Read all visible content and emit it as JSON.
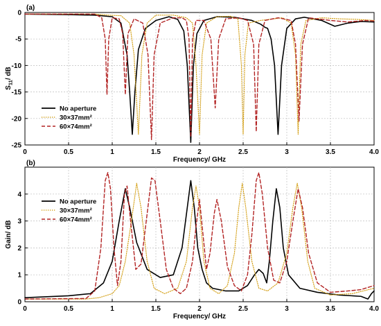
{
  "chart_data": [
    {
      "type": "line",
      "panel_label": "(a)",
      "xlabel": "Frequency/ GHz",
      "ylabel_main": "S",
      "ylabel_sub": "11",
      "ylabel_rest": "/ dB",
      "xlim": [
        0,
        4.0
      ],
      "ylim": [
        -25,
        0
      ],
      "xticks": [
        "0",
        "0.5",
        "1",
        "1.5",
        "2",
        "2.5",
        "3",
        "3.5",
        "4.0"
      ],
      "xtick_values": [
        0,
        0.5,
        1,
        1.5,
        2,
        2.5,
        3,
        3.5,
        4.0
      ],
      "yticks": [
        "0",
        "-5",
        "-10",
        "-15",
        "-20",
        "-25"
      ],
      "ytick_values": [
        0,
        -5,
        -10,
        -15,
        -20,
        -25
      ],
      "grid": true,
      "legend_position": "bottom-left",
      "series": [
        {
          "name": "No aperture",
          "color": "#000000",
          "style": "solid",
          "points": [
            [
              0,
              -0.3
            ],
            [
              0.5,
              -0.4
            ],
            [
              0.8,
              -0.5
            ],
            [
              1.0,
              -0.8
            ],
            [
              1.1,
              -2
            ],
            [
              1.17,
              -8
            ],
            [
              1.2,
              -15
            ],
            [
              1.23,
              -23
            ],
            [
              1.26,
              -15
            ],
            [
              1.3,
              -7
            ],
            [
              1.38,
              -3
            ],
            [
              1.5,
              -1.5
            ],
            [
              1.65,
              -0.8
            ],
            [
              1.75,
              -1.3
            ],
            [
              1.82,
              -3.5
            ],
            [
              1.86,
              -10
            ],
            [
              1.9,
              -24.5
            ],
            [
              1.93,
              -10
            ],
            [
              1.97,
              -4
            ],
            [
              2.05,
              -1.5
            ],
            [
              2.2,
              -0.8
            ],
            [
              2.4,
              -0.9
            ],
            [
              2.6,
              -1.5
            ],
            [
              2.7,
              -2.2
            ],
            [
              2.75,
              -2.8
            ],
            [
              2.78,
              -3
            ],
            [
              2.82,
              -5
            ],
            [
              2.86,
              -10
            ],
            [
              2.9,
              -23
            ],
            [
              2.94,
              -10
            ],
            [
              3.0,
              -3
            ],
            [
              3.1,
              -1.2
            ],
            [
              3.2,
              -0.9
            ],
            [
              3.4,
              -1.5
            ],
            [
              3.55,
              -2.6
            ],
            [
              3.7,
              -2
            ],
            [
              3.85,
              -1.7
            ],
            [
              4.0,
              -1.8
            ]
          ]
        },
        {
          "name": "30×37mm²",
          "color": "#d4a017",
          "style": "dotted",
          "points": [
            [
              0,
              -0.3
            ],
            [
              0.8,
              -0.3
            ],
            [
              0.95,
              -0.5
            ],
            [
              1.1,
              -0.6
            ],
            [
              1.2,
              -2
            ],
            [
              1.25,
              -8
            ],
            [
              1.3,
              -23
            ],
            [
              1.34,
              -8
            ],
            [
              1.4,
              -2
            ],
            [
              1.5,
              -0.5
            ],
            [
              1.7,
              -0.5
            ],
            [
              1.85,
              -1
            ],
            [
              1.92,
              -2
            ],
            [
              1.96,
              -10
            ],
            [
              2.0,
              -23
            ],
            [
              2.03,
              -8
            ],
            [
              2.08,
              -2
            ],
            [
              2.2,
              -0.8
            ],
            [
              2.35,
              -0.7
            ],
            [
              2.44,
              -1.2
            ],
            [
              2.48,
              -10
            ],
            [
              2.5,
              -23
            ],
            [
              2.52,
              -8
            ],
            [
              2.56,
              -2
            ],
            [
              2.7,
              -1.5
            ],
            [
              2.85,
              -1.2
            ],
            [
              2.95,
              -1
            ],
            [
              3.05,
              -2
            ],
            [
              3.1,
              -8
            ],
            [
              3.13,
              -23
            ],
            [
              3.16,
              -6
            ],
            [
              3.22,
              -1.5
            ],
            [
              3.4,
              -1
            ],
            [
              3.6,
              -1.2
            ],
            [
              3.8,
              -1.3
            ],
            [
              4.0,
              -1.5
            ]
          ]
        },
        {
          "name": "60×74mm²",
          "color": "#b22222",
          "style": "dashed",
          "points": [
            [
              0,
              -0.3
            ],
            [
              0.8,
              -0.3
            ],
            [
              0.88,
              -1
            ],
            [
              0.92,
              -5
            ],
            [
              0.94,
              -15.5
            ],
            [
              0.96,
              -5
            ],
            [
              1.0,
              -1
            ],
            [
              1.08,
              -1.2
            ],
            [
              1.12,
              -4
            ],
            [
              1.15,
              -15.5
            ],
            [
              1.18,
              -4
            ],
            [
              1.25,
              -1.2
            ],
            [
              1.35,
              -2
            ],
            [
              1.41,
              -8
            ],
            [
              1.45,
              -24
            ],
            [
              1.48,
              -8
            ],
            [
              1.55,
              -2
            ],
            [
              1.7,
              -1
            ],
            [
              1.8,
              -1
            ],
            [
              1.85,
              -1.5
            ],
            [
              1.88,
              -5
            ],
            [
              1.9,
              -23.5
            ],
            [
              1.92,
              -5
            ],
            [
              1.96,
              -1.5
            ],
            [
              2.05,
              -1.5
            ],
            [
              2.13,
              -5
            ],
            [
              2.18,
              -18
            ],
            [
              2.22,
              -5
            ],
            [
              2.3,
              -1.2
            ],
            [
              2.45,
              -1
            ],
            [
              2.55,
              -1.5
            ],
            [
              2.62,
              -6
            ],
            [
              2.65,
              -22.5
            ],
            [
              2.68,
              -6
            ],
            [
              2.75,
              -1.5
            ],
            [
              2.9,
              -1
            ],
            [
              3.05,
              -1.5
            ],
            [
              3.1,
              -6
            ],
            [
              3.14,
              -20.5
            ],
            [
              3.18,
              -6
            ],
            [
              3.25,
              -1
            ],
            [
              3.5,
              -1.5
            ],
            [
              3.7,
              -1.8
            ],
            [
              3.9,
              -1.5
            ],
            [
              4.0,
              -1.6
            ]
          ]
        }
      ]
    },
    {
      "type": "line",
      "panel_label": "(b)",
      "xlabel": "Frequency/ GHz",
      "ylabel": "Gain/ dB",
      "xlim": [
        0,
        4.0
      ],
      "ylim": [
        0,
        5
      ],
      "xticks": [
        "0",
        "0.5",
        "1",
        "1.5",
        "2",
        "2.5",
        "3",
        "3.5",
        "4.0"
      ],
      "xtick_values": [
        0,
        0.5,
        1,
        1.5,
        2,
        2.5,
        3,
        3.5,
        4.0
      ],
      "yticks": [
        "0",
        "1",
        "2",
        "3",
        "4"
      ],
      "ytick_values": [
        0,
        1,
        2,
        3,
        4
      ],
      "grid": true,
      "legend_position": "top-left",
      "series": [
        {
          "name": "No aperture",
          "color": "#000000",
          "style": "solid",
          "points": [
            [
              0,
              0.15
            ],
            [
              0.5,
              0.22
            ],
            [
              0.75,
              0.3
            ],
            [
              0.9,
              0.7
            ],
            [
              1.0,
              1.5
            ],
            [
              1.08,
              3
            ],
            [
              1.15,
              4.2
            ],
            [
              1.2,
              3.5
            ],
            [
              1.28,
              2.2
            ],
            [
              1.4,
              1.2
            ],
            [
              1.55,
              0.9
            ],
            [
              1.7,
              1.0
            ],
            [
              1.8,
              2
            ],
            [
              1.86,
              3.5
            ],
            [
              1.9,
              4.5
            ],
            [
              1.94,
              3.5
            ],
            [
              1.98,
              2
            ],
            [
              2.03,
              1.2
            ],
            [
              2.08,
              0.7
            ],
            [
              2.15,
              0.5
            ],
            [
              2.3,
              0.4
            ],
            [
              2.45,
              0.4
            ],
            [
              2.55,
              0.6
            ],
            [
              2.63,
              1.0
            ],
            [
              2.68,
              1.2
            ],
            [
              2.73,
              1.05
            ],
            [
              2.77,
              0.7
            ],
            [
              2.8,
              1.5
            ],
            [
              2.84,
              3
            ],
            [
              2.88,
              4.2
            ],
            [
              2.92,
              3.5
            ],
            [
              2.96,
              2
            ],
            [
              3.02,
              1.0
            ],
            [
              3.15,
              0.5
            ],
            [
              3.35,
              0.35
            ],
            [
              3.6,
              0.25
            ],
            [
              3.85,
              0.2
            ],
            [
              3.93,
              0.1
            ],
            [
              3.97,
              0.3
            ],
            [
              4.0,
              0.4
            ]
          ]
        },
        {
          "name": "30×37mm²",
          "color": "#d4a017",
          "style": "dotted",
          "points": [
            [
              0,
              0.1
            ],
            [
              0.7,
              0.1
            ],
            [
              0.85,
              0.15
            ],
            [
              1.0,
              0.3
            ],
            [
              1.08,
              0.6
            ],
            [
              1.15,
              1.5
            ],
            [
              1.22,
              3
            ],
            [
              1.28,
              4.4
            ],
            [
              1.33,
              3.5
            ],
            [
              1.4,
              1.5
            ],
            [
              1.48,
              0.5
            ],
            [
              1.6,
              0.3
            ],
            [
              1.75,
              0.5
            ],
            [
              1.85,
              1.5
            ],
            [
              1.92,
              3.5
            ],
            [
              1.96,
              4.3
            ],
            [
              2.0,
              3.5
            ],
            [
              2.05,
              1.5
            ],
            [
              2.12,
              0.5
            ],
            [
              2.22,
              0.3
            ],
            [
              2.32,
              0.6
            ],
            [
              2.4,
              1.8
            ],
            [
              2.45,
              3.5
            ],
            [
              2.49,
              4.4
            ],
            [
              2.53,
              3.5
            ],
            [
              2.6,
              1.5
            ],
            [
              2.68,
              0.5
            ],
            [
              2.78,
              0.4
            ],
            [
              2.9,
              0.7
            ],
            [
              3.0,
              1.8
            ],
            [
              3.07,
              3.5
            ],
            [
              3.12,
              4.4
            ],
            [
              3.17,
              3.5
            ],
            [
              3.24,
              1.5
            ],
            [
              3.32,
              0.5
            ],
            [
              3.5,
              0.25
            ],
            [
              3.75,
              0.3
            ],
            [
              4.0,
              0.5
            ]
          ]
        },
        {
          "name": "60×74mm²",
          "color": "#b22222",
          "style": "dashed",
          "points": [
            [
              0,
              0.1
            ],
            [
              0.7,
              0.12
            ],
            [
              0.8,
              0.4
            ],
            [
              0.87,
              2
            ],
            [
              0.92,
              4.5
            ],
            [
              0.95,
              4.8
            ],
            [
              0.98,
              4.2
            ],
            [
              1.02,
              2
            ],
            [
              1.06,
              0.6
            ],
            [
              1.1,
              1.5
            ],
            [
              1.14,
              4
            ],
            [
              1.17,
              4.3
            ],
            [
              1.21,
              3
            ],
            [
              1.27,
              1.2
            ],
            [
              1.33,
              1.4
            ],
            [
              1.39,
              3
            ],
            [
              1.45,
              4.6
            ],
            [
              1.49,
              4.5
            ],
            [
              1.55,
              3
            ],
            [
              1.62,
              1.2
            ],
            [
              1.7,
              0.5
            ],
            [
              1.78,
              0.3
            ],
            [
              1.85,
              0.5
            ],
            [
              1.92,
              1.5
            ],
            [
              1.96,
              2.8
            ],
            [
              2.0,
              3.8
            ],
            [
              2.04,
              2.5
            ],
            [
              2.08,
              1.2
            ],
            [
              2.12,
              1.8
            ],
            [
              2.17,
              3.3
            ],
            [
              2.2,
              3.8
            ],
            [
              2.25,
              3
            ],
            [
              2.32,
              1.3
            ],
            [
              2.4,
              0.6
            ],
            [
              2.48,
              0.4
            ],
            [
              2.55,
              1.0
            ],
            [
              2.6,
              2.5
            ],
            [
              2.65,
              4.5
            ],
            [
              2.68,
              4.8
            ],
            [
              2.72,
              4
            ],
            [
              2.78,
              2
            ],
            [
              2.85,
              0.8
            ],
            [
              2.92,
              0.7
            ],
            [
              3.0,
              1.5
            ],
            [
              3.07,
              3
            ],
            [
              3.13,
              4.2
            ],
            [
              3.18,
              3.5
            ],
            [
              3.25,
              1.8
            ],
            [
              3.35,
              0.7
            ],
            [
              3.5,
              0.35
            ],
            [
              3.7,
              0.4
            ],
            [
              3.85,
              0.45
            ],
            [
              4.0,
              0.6
            ]
          ]
        }
      ]
    }
  ]
}
